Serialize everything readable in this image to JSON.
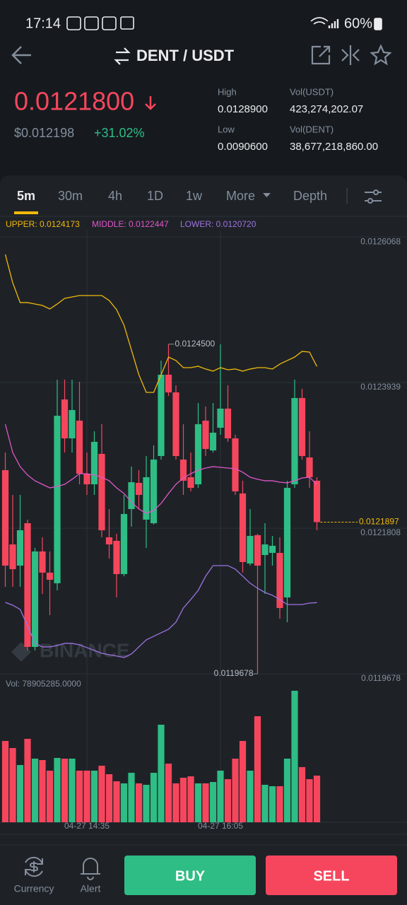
{
  "status_bar": {
    "time": "17:14",
    "battery": "60%"
  },
  "header": {
    "pair": "DENT / USDT"
  },
  "ticker": {
    "price": "0.0121800",
    "fiat": "$0.012198",
    "change": "+31.02%",
    "stats": [
      {
        "label": "High",
        "value": "0.0128900"
      },
      {
        "label": "Vol(USDT)",
        "value": "423,274,202.07"
      },
      {
        "label": "Low",
        "value": "0.0090600"
      },
      {
        "label": "Vol(DENT)",
        "value": "38,677,218,860.00"
      }
    ]
  },
  "tabs": [
    "5m",
    "30m",
    "4h",
    "1D",
    "1w",
    "More",
    "Depth"
  ],
  "chart_data": {
    "type": "candlestick",
    "categories": [
      null,
      null,
      null,
      null,
      null,
      null,
      null,
      null,
      null,
      null,
      null,
      "04-27 14:35",
      null,
      null,
      null,
      null,
      null,
      null,
      null,
      null,
      null,
      null,
      null,
      null,
      null,
      null,
      null,
      null,
      null,
      "04-27 16:05",
      null,
      null,
      null,
      null,
      null,
      null,
      null,
      null,
      null,
      null,
      null,
      null,
      null
    ],
    "open": [
      0.0122657,
      0.0121571,
      0.0121261,
      0.0121881,
      0.0120072,
      0.0121468,
      0.0121158,
      0.0121003,
      0.0123691,
      0.0123122,
      0.0123381,
      0.0122605,
      0.012245,
      0.0122895,
      0.0121675,
      0.0121623,
      0.0121137,
      0.0122088,
      0.0122471,
      0.0121933,
      0.0121881,
      0.0122864,
      0.0124053,
      0.0123794,
      0.0122812,
      0.0122554,
      0.012245,
      0.0123381,
      0.0122946,
      0.0123277,
      0.0123557,
      0.0123122,
      0.0122316,
      0.0121292,
      0.0121706,
      0.0121416,
      0.0121447,
      0.0121447,
      0.0120796,
      0.012245,
      0.0123712,
      0.0122843,
      0.0122502
    ],
    "high": [
      0.0122915,
      0.0122295,
      0.0122295,
      0.0121933,
      0.012152,
      0.0121675,
      0.0121468,
      0.012398,
      0.012398,
      0.012398,
      0.0123949,
      0.0122915,
      0.0123226,
      0.0123329,
      0.0122088,
      0.0121726,
      0.0122295,
      0.0122709,
      0.0122657,
      0.0122864,
      0.0123019,
      0.012426,
      0.01245,
      0.0123898,
      0.0123329,
      0.0122915,
      0.0123639,
      0.0123588,
      0.0123639,
      0.0124497,
      0.0123898,
      0.0123174,
      0.0122502,
      0.0122088,
      0.0121726,
      0.0121881,
      0.0121695,
      0.0121675,
      0.0122502,
      0.012398,
      0.0123846,
      0.0123226,
      0.0122554
    ],
    "low": [
      0.0120951,
      0.0120951,
      0.0120951,
      0.012002,
      0.012002,
      0.0120847,
      0.0120537,
      0.0120899,
      0.0122915,
      0.0122915,
      0.012245,
      0.0122295,
      0.0122295,
      0.0121675,
      0.0121364,
      0.0120796,
      0.0121106,
      0.012183,
      0.0122088,
      0.012152,
      0.0121861,
      0.0122812,
      0.0123743,
      0.0122812,
      0.0122295,
      0.0122347,
      0.0122398,
      0.0122864,
      0.0122915,
      0.0123174,
      0.0123071,
      0.0122295,
      0.0121158,
      0.0121261,
      0.0119678,
      0.0120847,
      0.0121261,
      0.0120486,
      0.0120434,
      0.0122398,
      0.0122812,
      0.0122398,
      0.0121778
    ],
    "close": [
      0.0121261,
      0.0121209,
      0.0121778,
      0.0120072,
      0.0121468,
      0.0121158,
      0.0121054,
      0.0123453,
      0.0123122,
      0.0123536,
      0.0122605,
      0.012245,
      0.0123071,
      0.0121778,
      0.0121571,
      0.0121137,
      0.0122016,
      0.0122481,
      0.0122295,
      0.0122554,
      0.0122812,
      0.0124053,
      0.0123794,
      0.0122864,
      0.0122502,
      0.0122398,
      0.0123329,
      0.0122967,
      0.0123205,
      0.0123557,
      0.0123122,
      0.0122347,
      0.0121313,
      0.0121695,
      0.0121261,
      0.0121571,
      0.0121551,
      0.0120641,
      0.0122398,
      0.0123712,
      0.0122864,
      0.0122554,
      0.0121897
    ],
    "up_color": "#2ebd85",
    "down_color": "#f6465d",
    "ylim": [
      0.0119658,
      0.0126162
    ],
    "yticks": [
      0.0126068,
      0.0123939,
      0.0121808,
      0.0119678
    ],
    "grid": true,
    "high_label": "0.0124500",
    "low_label": "0.0119678",
    "series": [
      {
        "name": "UPPER: 0.0124173",
        "color": "#f0b90b",
        "values": [
          0.0125811,
          0.0125397,
          0.0125108,
          0.0125108,
          0.0125087,
          0.0125066,
          0.0125014,
          0.0125087,
          0.012517,
          0.012519,
          0.0125211,
          0.0125211,
          0.0125211,
          0.0125211,
          0.0125139,
          0.0125004,
          0.0124777,
          0.0124415,
          0.0124053,
          0.0123794,
          0.0123794,
          0.0124053,
          0.0124311,
          0.012426,
          0.0124156,
          0.0124156,
          0.0124177,
          0.0124136,
          0.0124105,
          0.0124156,
          0.0124125,
          0.0124136,
          0.0124105,
          0.0124136,
          0.0124156,
          0.0124156,
          0.0124136,
          0.0124208,
          0.012426,
          0.0124311,
          0.0124394,
          0.0124384,
          0.0124173
        ]
      },
      {
        "name": "MIDDLE: 0.0122447",
        "color": "#e056c8",
        "values": [
          0.0123329,
          0.0122915,
          0.0122709,
          0.0122585,
          0.0122502,
          0.012245,
          0.0122398,
          0.0122419,
          0.012245,
          0.0122523,
          0.0122605,
          0.0122605,
          0.0122585,
          0.0122554,
          0.0122502,
          0.0122398,
          0.0122316,
          0.0122192,
          0.0122088,
          0.0122026,
          0.0122068,
          0.0122171,
          0.0122316,
          0.012245,
          0.0122543,
          0.0122605,
          0.0122657,
          0.0122688,
          0.0122709,
          0.0122698,
          0.0122688,
          0.0122678,
          0.0122626,
          0.0122554,
          0.0122523,
          0.0122502,
          0.0122502,
          0.0122481,
          0.0122471,
          0.0122502,
          0.0122543,
          0.0122554,
          0.0122447
        ]
      },
      {
        "name": "LOWER: 0.0120720",
        "color": "#9f72e0",
        "values": [
          0.0120723,
          0.0120682,
          0.012062,
          0.0120382,
          0.0120124,
          0.0120072,
          0.0120072,
          0.0120093,
          0.0120124,
          0.0120124,
          0.0120103,
          0.0120062,
          0.012002,
          0.0119979,
          0.0119958,
          0.0119938,
          0.0119917,
          0.0119969,
          0.0120072,
          0.0120175,
          0.0120227,
          0.0120279,
          0.012033,
          0.0120434,
          0.0120641,
          0.0120765,
          0.0120899,
          0.0121106,
          0.0121261,
          0.0121261,
          0.0121261,
          0.0121209,
          0.0121106,
          0.0121003,
          0.012093,
          0.0120868,
          0.0120827,
          0.0120765,
          0.0120692,
          0.0120692,
          0.0120692,
          0.0120713,
          0.012072
        ]
      }
    ],
    "volume": {
      "label": "Vol: 78905285.0000",
      "vlim": [
        0,
        242700000
      ],
      "values": [
        137500000,
        125500000,
        96800000,
        141100000,
        107600000,
        105200000,
        87300000,
        108800000,
        107600000,
        107600000,
        87300000,
        87300000,
        87300000,
        95600000,
        81300000,
        69300000,
        65800000,
        83700000,
        65800000,
        63400000,
        83700000,
        165000000,
        99200000,
        65800000,
        75300000,
        77700000,
        65800000,
        65800000,
        68100000,
        87300000,
        72900000,
        107600000,
        137500000,
        87300000,
        179300000,
        63400000,
        61000000,
        61000000,
        107600000,
        222400000,
        93300000,
        72900000,
        78905285
      ]
    }
  },
  "watermark": "BINANCE",
  "footer": {
    "nav": [
      "Currency",
      "Alert"
    ],
    "buy": "BUY",
    "sell": "SELL"
  }
}
